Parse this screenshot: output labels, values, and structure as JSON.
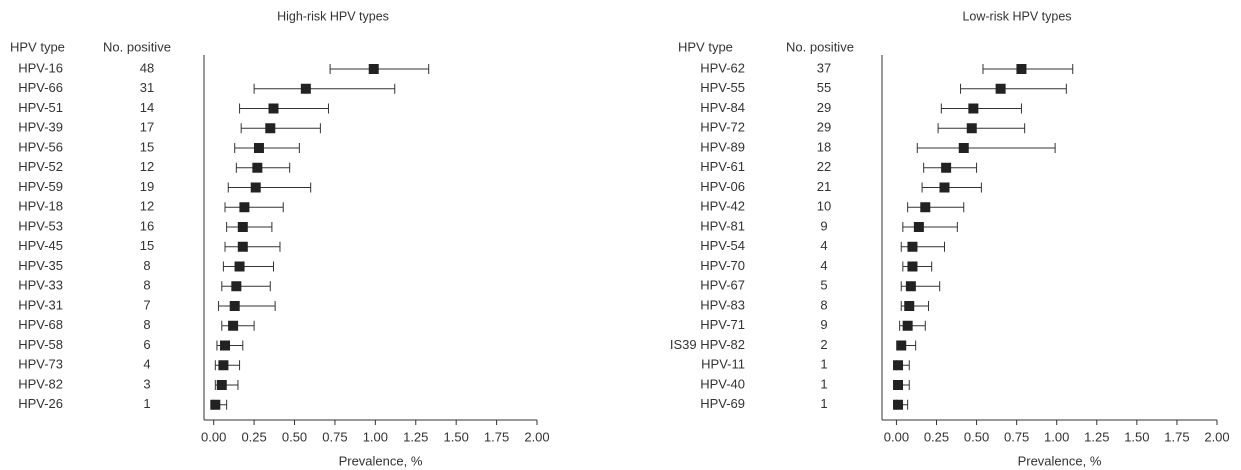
{
  "chart_data": [
    {
      "type": "forest",
      "title": "High-risk HPV types",
      "label_header": "HPV type",
      "count_header": "No. positive",
      "xlabel": "Prevalence, %",
      "categories": [
        "HPV-16",
        "HPV-66",
        "HPV-51",
        "HPV-39",
        "HPV-56",
        "HPV-52",
        "HPV-59",
        "HPV-18",
        "HPV-53",
        "HPV-45",
        "HPV-35",
        "HPV-33",
        "HPV-31",
        "HPV-68",
        "HPV-58",
        "HPV-73",
        "HPV-82",
        "HPV-26"
      ],
      "counts": [
        48,
        31,
        14,
        17,
        15,
        12,
        19,
        12,
        16,
        15,
        8,
        8,
        7,
        8,
        6,
        4,
        3,
        1
      ],
      "values": [
        0.99,
        0.57,
        0.37,
        0.35,
        0.28,
        0.27,
        0.26,
        0.19,
        0.18,
        0.18,
        0.16,
        0.14,
        0.13,
        0.12,
        0.07,
        0.06,
        0.05,
        0.01
      ],
      "lower": [
        0.72,
        0.25,
        0.16,
        0.17,
        0.13,
        0.14,
        0.09,
        0.07,
        0.08,
        0.07,
        0.06,
        0.05,
        0.03,
        0.05,
        0.02,
        0.01,
        0.01,
        0.0
      ],
      "upper": [
        1.33,
        1.12,
        0.71,
        0.66,
        0.53,
        0.47,
        0.6,
        0.43,
        0.36,
        0.41,
        0.37,
        0.35,
        0.38,
        0.25,
        0.18,
        0.16,
        0.15,
        0.08
      ],
      "color": "#222222",
      "xlim": [
        -0.06,
        2.0
      ],
      "xticks": [
        {
          "value": 0,
          "label": "0.00"
        },
        {
          "value": 0.25,
          "label": "0.25"
        },
        {
          "value": 0.5,
          "label": "0.50"
        },
        {
          "value": 0.75,
          "label": "0.75"
        },
        {
          "value": 1,
          "label": "1.00"
        },
        {
          "value": 1.25,
          "label": "1.25"
        },
        {
          "value": 1.5,
          "label": "1.50"
        },
        {
          "value": 1.75,
          "label": "1.75"
        },
        {
          "value": 2,
          "label": "2.00"
        }
      ]
    },
    {
      "type": "forest",
      "title": "Low-risk HPV types",
      "label_header": "HPV type",
      "count_header": "No. positive",
      "xlabel": "Prevalence, %",
      "categories": [
        "HPV-62",
        "HPV-55",
        "HPV-84",
        "HPV-72",
        "HPV-89",
        "HPV-61",
        "HPV-06",
        "HPV-42",
        "HPV-81",
        "HPV-54",
        "HPV-70",
        "HPV-67",
        "HPV-83",
        "HPV-71",
        "IS39 HPV-82",
        "HPV-11",
        "HPV-40",
        "HPV-69"
      ],
      "counts": [
        37,
        55,
        29,
        29,
        18,
        22,
        21,
        10,
        9,
        4,
        4,
        5,
        8,
        9,
        2,
        1,
        1,
        1
      ],
      "values": [
        0.78,
        0.65,
        0.48,
        0.47,
        0.42,
        0.31,
        0.3,
        0.18,
        0.14,
        0.1,
        0.1,
        0.09,
        0.08,
        0.07,
        0.03,
        0.01,
        0.01,
        0.01
      ],
      "lower": [
        0.54,
        0.4,
        0.28,
        0.26,
        0.13,
        0.17,
        0.16,
        0.07,
        0.04,
        0.03,
        0.04,
        0.03,
        0.03,
        0.02,
        0.01,
        0.0,
        0.0,
        0.0
      ],
      "upper": [
        1.1,
        1.06,
        0.78,
        0.8,
        0.99,
        0.5,
        0.53,
        0.42,
        0.38,
        0.3,
        0.22,
        0.27,
        0.2,
        0.18,
        0.12,
        0.08,
        0.08,
        0.07
      ],
      "color": "#222222",
      "xlim": [
        -0.09,
        2.0
      ],
      "xticks": [
        {
          "value": 0,
          "label": "0.00"
        },
        {
          "value": 0.25,
          "label": "0.25"
        },
        {
          "value": 0.5,
          "label": "0.50"
        },
        {
          "value": 0.75,
          "label": "0.75"
        },
        {
          "value": 1,
          "label": "1.00"
        },
        {
          "value": 1.25,
          "label": "1.25"
        },
        {
          "value": 1.5,
          "label": "1.50"
        },
        {
          "value": 1.75,
          "label": "1.75"
        },
        {
          "value": 2,
          "label": "2.00"
        }
      ]
    }
  ]
}
